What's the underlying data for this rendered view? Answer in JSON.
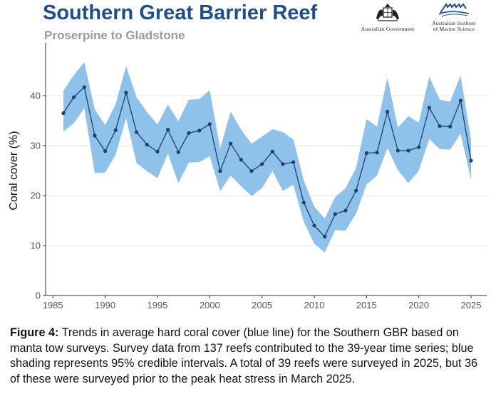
{
  "header": {
    "title": "Southern Great Barrier Reef",
    "subtitle": "Proserpine to Gladstone"
  },
  "logos": {
    "gov": {
      "icon": "coat-of-arms",
      "text": "Australian Government"
    },
    "aims": {
      "icon": "aims-logo",
      "text_line1": "Australian Institute",
      "text_line2": "of Marine Science"
    }
  },
  "caption": {
    "label": "Figure 4:",
    "text": " Trends in average hard coral cover (blue line) for the Southern GBR based on manta tow surveys. Survey data from 137 reefs contributed to the 39-year time series; blue shading represents 95% credible intervals. A total of 39 reefs were surveyed in 2025, but 36 of these were surveyed prior to the peak heat stress in March 2025."
  },
  "colors": {
    "line": "#1f3f6e",
    "band": "#8ec2ea",
    "grid": "#e6e6e6",
    "title": "#1f4e8c"
  },
  "chart_data": {
    "type": "line",
    "title": "",
    "xlabel": "",
    "ylabel": "Coral cover (%)",
    "xlim": [
      1984.3,
      2026.5
    ],
    "ylim": [
      0,
      50
    ],
    "xticks": [
      1985,
      1990,
      1995,
      2000,
      2005,
      2010,
      2015,
      2020,
      2025
    ],
    "yticks": [
      0,
      10,
      20,
      30,
      40
    ],
    "grid": "horizontal",
    "series": [
      {
        "x": [
          1986,
          1987,
          1988,
          1989,
          1990,
          1991,
          1992,
          1993,
          1994,
          1995,
          1996,
          1997,
          1998,
          1999,
          2000,
          2001,
          2002,
          2003,
          2004,
          2005,
          2006,
          2007,
          2008,
          2009,
          2010,
          2011,
          2012,
          2013,
          2014,
          2015,
          2016,
          2017,
          2018,
          2019,
          2020,
          2021,
          2022,
          2023,
          2024,
          2025
        ],
        "values": [
          36.5,
          39.7,
          41.7,
          32.0,
          28.9,
          33.1,
          40.6,
          32.7,
          30.2,
          28.8,
          33.2,
          28.7,
          32.5,
          33.0,
          34.3,
          24.9,
          30.4,
          27.2,
          24.9,
          26.3,
          28.8,
          26.3,
          26.7,
          18.6,
          14.0,
          11.8,
          16.3,
          17.0,
          21.0,
          28.5,
          28.6,
          36.8,
          29.0,
          29.0,
          29.7,
          37.6,
          33.9,
          33.8,
          39.0,
          27.0
        ],
        "lower": [
          32.8,
          34.5,
          37.5,
          24.5,
          24.6,
          28.2,
          35.5,
          26.5,
          24.9,
          23.5,
          28.4,
          22.5,
          26.6,
          26.7,
          27.9,
          20.9,
          24.0,
          21.9,
          19.9,
          21.5,
          24.9,
          20.9,
          22.2,
          14.7,
          10.4,
          8.6,
          13.1,
          13.0,
          16.4,
          22.2,
          24.0,
          29.5,
          25.1,
          22.5,
          25.0,
          31.3,
          29.3,
          29.2,
          32.4,
          23.2
        ],
        "upper": [
          41.0,
          44.1,
          46.7,
          37.3,
          34.1,
          38.3,
          45.9,
          39.7,
          36.7,
          34.2,
          38.2,
          34.9,
          39.2,
          39.3,
          41.1,
          29.4,
          36.8,
          33.2,
          30.4,
          31.8,
          33.3,
          32.7,
          31.2,
          23.0,
          17.8,
          15.4,
          19.7,
          21.5,
          25.5,
          35.3,
          33.8,
          43.6,
          33.6,
          35.9,
          34.6,
          43.8,
          39.2,
          38.8,
          44.0,
          31.2
        ]
      }
    ]
  }
}
